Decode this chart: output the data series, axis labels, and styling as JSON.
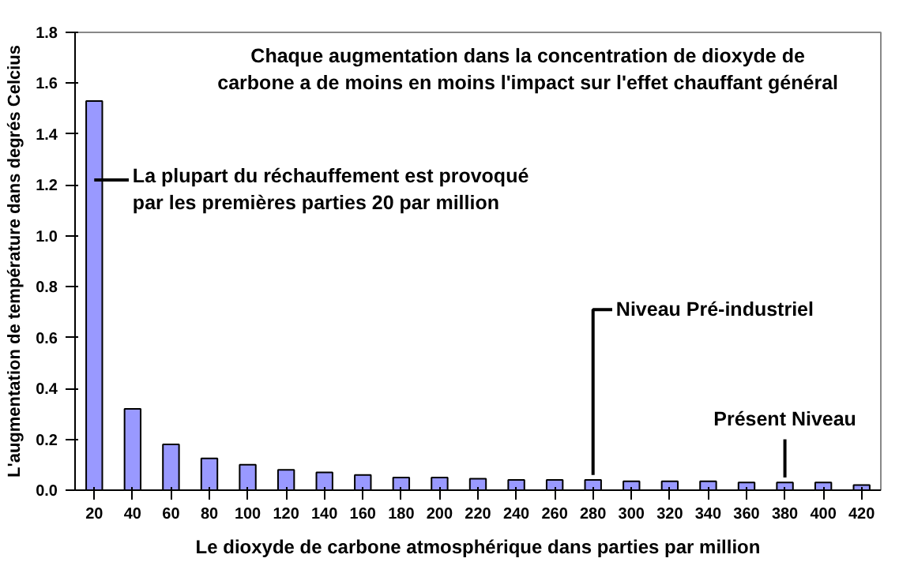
{
  "chart_data": {
    "type": "bar",
    "title": "Chaque augmentation dans la concentration de dioxyde de\ncarbone a de moins en moins l'impact sur l'effet chauffant général",
    "xlabel": "Le dioxyde de carbone atmosphérique dans parties par million",
    "ylabel": "L'augmentation de température dans degrés Celcius",
    "categories": [
      "20",
      "40",
      "60",
      "80",
      "100",
      "120",
      "140",
      "160",
      "180",
      "200",
      "220",
      "240",
      "260",
      "280",
      "300",
      "320",
      "340",
      "360",
      "380",
      "400",
      "420"
    ],
    "values": [
      1.53,
      0.32,
      0.18,
      0.125,
      0.1,
      0.08,
      0.07,
      0.06,
      0.05,
      0.05,
      0.045,
      0.04,
      0.04,
      0.04,
      0.035,
      0.035,
      0.035,
      0.03,
      0.03,
      0.03,
      0.02
    ],
    "color": "#9999ff",
    "ylim": [
      0,
      1.8
    ],
    "yticks": [
      {
        "value": 0,
        "label": "0.0"
      },
      0.2,
      0.4,
      0.6,
      0.8,
      {
        "value": 1,
        "label": "1.0"
      },
      1.2,
      1.4,
      1.6,
      1.8
    ],
    "grid": false,
    "annotations": [
      {
        "text": "La plupart du réchauffement est provoqué\npar les premières parties 20 par million",
        "x": "20",
        "y": 1.22
      },
      {
        "text": "Niveau Pré-industriel",
        "x": "280",
        "y": 0.04
      },
      {
        "text": "Présent Niveau",
        "x": "380",
        "y": 0.03
      }
    ]
  }
}
